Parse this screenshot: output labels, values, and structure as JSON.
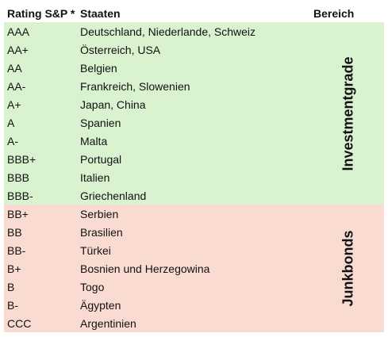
{
  "header": {
    "rating": "Rating S&P *",
    "states": "Staaten",
    "range": "Bereich"
  },
  "groups": [
    {
      "label": "Investmentgrade",
      "color": "#d9f2d0",
      "rows": [
        {
          "rating": "AAA",
          "states": "Deutschland, Niederlande, Schweiz"
        },
        {
          "rating": "AA+",
          "states": "Österreich, USA"
        },
        {
          "rating": "AA",
          "states": "Belgien"
        },
        {
          "rating": "AA-",
          "states": "Frankreich, Slowenien"
        },
        {
          "rating": "A+",
          "states": "Japan, China"
        },
        {
          "rating": "A",
          "states": "Spanien"
        },
        {
          "rating": "A-",
          "states": "Malta"
        },
        {
          "rating": "BBB+",
          "states": "Portugal"
        },
        {
          "rating": "BBB",
          "states": "Italien"
        },
        {
          "rating": "BBB-",
          "states": "Griechenland"
        }
      ]
    },
    {
      "label": "Junkbonds",
      "color": "#fadbd2",
      "rows": [
        {
          "rating": "BB+",
          "states": "Serbien"
        },
        {
          "rating": "BB",
          "states": "Brasilien"
        },
        {
          "rating": "BB-",
          "states": "Türkei"
        },
        {
          "rating": "B+",
          "states": "Bosnien und Herzegowina"
        },
        {
          "rating": "B",
          "states": "Togo"
        },
        {
          "rating": "B-",
          "states": "Ägypten"
        },
        {
          "rating": "CCC",
          "states": "Argentinien"
        }
      ]
    }
  ]
}
